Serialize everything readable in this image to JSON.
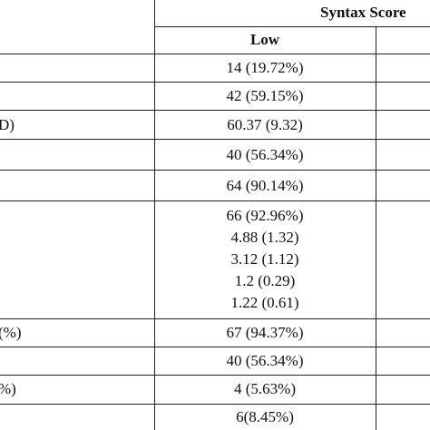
{
  "header": {
    "group_title": "Syntax Score",
    "col_low": "Low"
  },
  "rows": [
    {
      "left": "",
      "values": [
        "14 (19.72%)"
      ]
    },
    {
      "left": "",
      "values": [
        "42 (59.15%)"
      ]
    },
    {
      "left": "D)",
      "values": [
        "60.37 (9.32)"
      ]
    },
    {
      "left": "",
      "values": [
        "40 (56.34%)"
      ]
    },
    {
      "left": "",
      "values": [
        "64 (90.14%)"
      ]
    },
    {
      "left": "",
      "values": [
        "66 (92.96%)",
        "4.88 (1.32)",
        "3.12 (1.12)",
        "1.2 (0.29)",
        "1.22 (0.61)"
      ]
    },
    {
      "left": "(%)",
      "values": [
        "67 (94.37%)"
      ]
    },
    {
      "left": "",
      "values": [
        "40 (56.34%)"
      ]
    },
    {
      "left": "%)",
      "values": [
        "4 (5.63%)"
      ]
    },
    {
      "left": "",
      "values": [
        "6(8.45%)"
      ]
    }
  ]
}
